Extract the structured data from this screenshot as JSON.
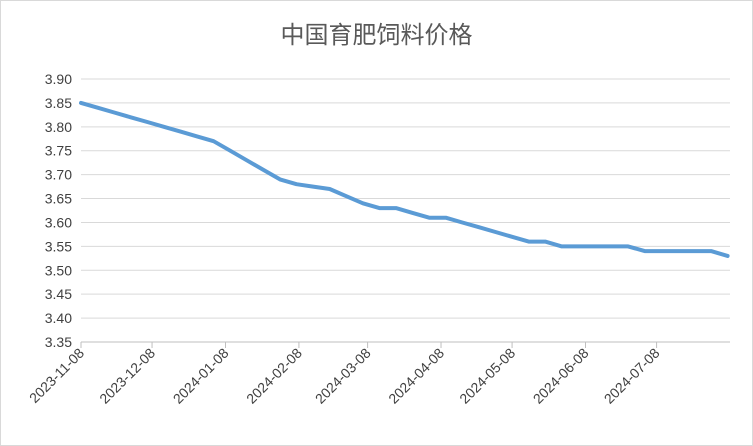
{
  "chart_data": {
    "type": "line",
    "title": "中国育肥饲料价格",
    "xlabel": "",
    "ylabel": "",
    "ylim": [
      3.35,
      3.9
    ],
    "yticks": [
      "3.35",
      "3.40",
      "3.45",
      "3.50",
      "3.55",
      "3.60",
      "3.65",
      "3.70",
      "3.75",
      "3.80",
      "3.85",
      "3.90"
    ],
    "xticks": [
      {
        "label": "2023-11-08",
        "x": "2023-11-08"
      },
      {
        "label": "2023-12-08",
        "x": "2023-12-08"
      },
      {
        "label": "2024-01-08",
        "x": "2024-01-08"
      },
      {
        "label": "2024-02-08",
        "x": "2024-02-08"
      },
      {
        "label": "2024-03-08",
        "x": "2024-03-08"
      },
      {
        "label": "2024-04-08",
        "x": "2024-04-08"
      },
      {
        "label": "2024-05-08",
        "x": "2024-05-08"
      },
      {
        "label": "2024-06-08",
        "x": "2024-06-08"
      },
      {
        "label": "2024-07-08",
        "x": "2024-07-08"
      }
    ],
    "xlim": [
      "2023-11-08",
      "2024-08-08"
    ],
    "grid": true,
    "legend": "none",
    "series": [
      {
        "color": "#5b9bd5",
        "points": [
          {
            "x": "2023-11-08",
            "y": 3.85
          },
          {
            "x": "2023-11-15",
            "y": 3.84
          },
          {
            "x": "2023-11-22",
            "y": 3.83
          },
          {
            "x": "2023-11-29",
            "y": 3.82
          },
          {
            "x": "2023-12-06",
            "y": 3.81
          },
          {
            "x": "2023-12-13",
            "y": 3.8
          },
          {
            "x": "2023-12-20",
            "y": 3.79
          },
          {
            "x": "2023-12-27",
            "y": 3.78
          },
          {
            "x": "2024-01-03",
            "y": 3.77
          },
          {
            "x": "2024-01-10",
            "y": 3.75
          },
          {
            "x": "2024-01-17",
            "y": 3.73
          },
          {
            "x": "2024-01-24",
            "y": 3.71
          },
          {
            "x": "2024-01-31",
            "y": 3.69
          },
          {
            "x": "2024-02-07",
            "y": 3.68
          },
          {
            "x": "2024-02-14",
            "y": 3.675
          },
          {
            "x": "2024-02-21",
            "y": 3.67
          },
          {
            "x": "2024-02-28",
            "y": 3.655
          },
          {
            "x": "2024-03-06",
            "y": 3.64
          },
          {
            "x": "2024-03-13",
            "y": 3.63
          },
          {
            "x": "2024-03-20",
            "y": 3.63
          },
          {
            "x": "2024-03-27",
            "y": 3.62
          },
          {
            "x": "2024-04-03",
            "y": 3.61
          },
          {
            "x": "2024-04-10",
            "y": 3.61
          },
          {
            "x": "2024-04-17",
            "y": 3.6
          },
          {
            "x": "2024-04-24",
            "y": 3.59
          },
          {
            "x": "2024-05-01",
            "y": 3.58
          },
          {
            "x": "2024-05-08",
            "y": 3.57
          },
          {
            "x": "2024-05-15",
            "y": 3.56
          },
          {
            "x": "2024-05-22",
            "y": 3.56
          },
          {
            "x": "2024-05-29",
            "y": 3.55
          },
          {
            "x": "2024-06-05",
            "y": 3.55
          },
          {
            "x": "2024-06-12",
            "y": 3.55
          },
          {
            "x": "2024-06-19",
            "y": 3.55
          },
          {
            "x": "2024-06-26",
            "y": 3.55
          },
          {
            "x": "2024-07-03",
            "y": 3.54
          },
          {
            "x": "2024-07-10",
            "y": 3.54
          },
          {
            "x": "2024-07-17",
            "y": 3.54
          },
          {
            "x": "2024-07-24",
            "y": 3.54
          },
          {
            "x": "2024-07-31",
            "y": 3.54
          },
          {
            "x": "2024-08-07",
            "y": 3.53
          }
        ]
      }
    ]
  }
}
